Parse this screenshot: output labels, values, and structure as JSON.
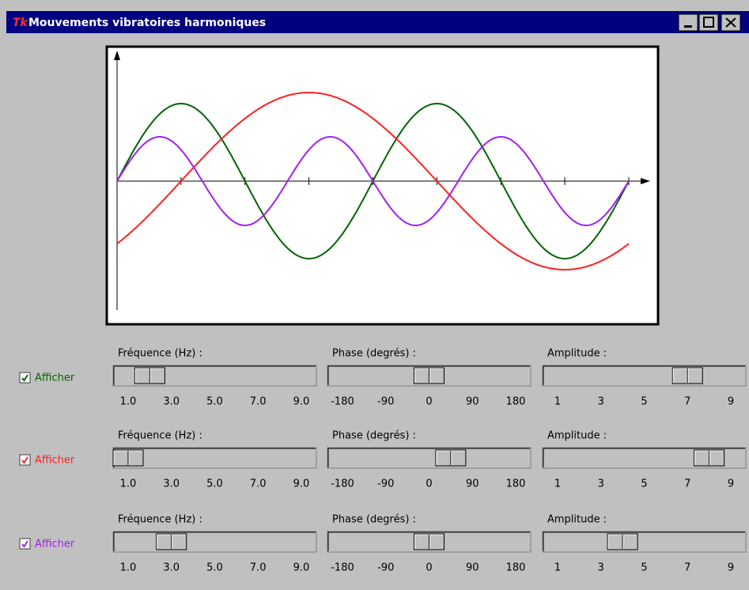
{
  "window": {
    "title": "Mouvements vibratoires harmoniques"
  },
  "rows": [
    {
      "color": "#006400",
      "checkbox": {
        "label": "Afficher",
        "checked": true
      },
      "sliders": [
        {
          "label": "Fréquence (Hz) :",
          "range": [
            1,
            9
          ],
          "value": 2,
          "ticks": [
            {
              "value": 1,
              "label": "1.0"
            },
            {
              "value": 3,
              "label": "3.0"
            },
            {
              "value": 5,
              "label": "5.0"
            },
            {
              "value": 7,
              "label": "7.0"
            },
            {
              "value": 9,
              "label": "9.0"
            }
          ]
        },
        {
          "label": "Phase (degrés) :",
          "range": [
            -180,
            180
          ],
          "value": 0,
          "ticks": [
            -180,
            -90,
            0,
            90,
            180
          ]
        },
        {
          "label": "Amplitude :",
          "range": [
            1,
            9
          ],
          "value": 7,
          "ticks": [
            1,
            3,
            5,
            7,
            9
          ]
        }
      ]
    },
    {
      "color": "#ff2020",
      "checkbox": {
        "label": "Afficher",
        "checked": true
      },
      "sliders": [
        {
          "label": "Fréquence (Hz) :",
          "range": [
            1,
            9
          ],
          "value": 1,
          "ticks": [
            {
              "value": 1,
              "label": "1.0"
            },
            {
              "value": 3,
              "label": "3.0"
            },
            {
              "value": 5,
              "label": "5.0"
            },
            {
              "value": 7,
              "label": "7.0"
            },
            {
              "value": 9,
              "label": "9.0"
            }
          ]
        },
        {
          "label": "Phase (degrés) :",
          "range": [
            -180,
            180
          ],
          "value": 45,
          "ticks": [
            -180,
            -90,
            0,
            90,
            180
          ]
        },
        {
          "label": "Amplitude :",
          "range": [
            1,
            9
          ],
          "value": 8,
          "ticks": [
            1,
            3,
            5,
            7,
            9
          ]
        }
      ]
    },
    {
      "color": "#a020f0",
      "checkbox": {
        "label": "Afficher",
        "checked": true
      },
      "sliders": [
        {
          "label": "Fréquence (Hz) :",
          "range": [
            1,
            9
          ],
          "value": 3,
          "ticks": [
            {
              "value": 1,
              "label": "1.0"
            },
            {
              "value": 3,
              "label": "3.0"
            },
            {
              "value": 5,
              "label": "5.0"
            },
            {
              "value": 7,
              "label": "7.0"
            },
            {
              "value": 9,
              "label": "9.0"
            }
          ]
        },
        {
          "label": "Phase (degrés) :",
          "range": [
            -180,
            180
          ],
          "value": 0,
          "ticks": [
            -180,
            -90,
            0,
            90,
            180
          ]
        },
        {
          "label": "Amplitude :",
          "range": [
            1,
            9
          ],
          "value": 4,
          "ticks": [
            1,
            3,
            5,
            7,
            9
          ]
        }
      ]
    }
  ]
}
